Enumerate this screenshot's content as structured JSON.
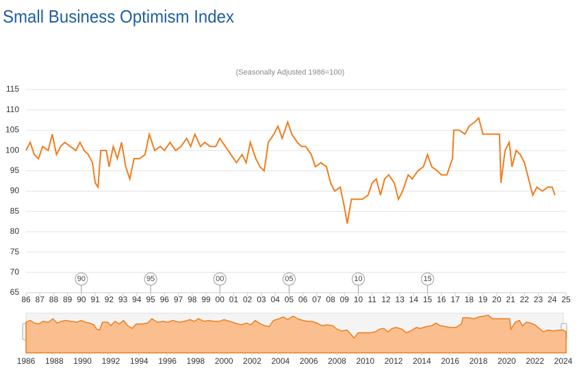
{
  "chart_data": {
    "type": "line",
    "title": "Small Business Optimism Index",
    "subtitle": "(Seasonally Adjusted 1986=100)",
    "color": "#f07c1a",
    "grid": true,
    "x": [
      1986.0,
      1986.3,
      1986.6,
      1986.9,
      1987.2,
      1987.6,
      1987.9,
      1988.2,
      1988.5,
      1988.8,
      1989.2,
      1989.6,
      1989.9,
      1990.2,
      1990.5,
      1990.8,
      1991.0,
      1991.2,
      1991.4,
      1991.8,
      1992.0,
      1992.3,
      1992.6,
      1992.9,
      1993.2,
      1993.5,
      1993.8,
      1994.2,
      1994.6,
      1994.9,
      1995.3,
      1995.7,
      1996.0,
      1996.4,
      1996.8,
      1997.2,
      1997.6,
      1997.9,
      1998.2,
      1998.6,
      1998.9,
      1999.3,
      1999.7,
      2000.0,
      2000.4,
      2000.8,
      2001.2,
      2001.6,
      2001.9,
      2002.2,
      2002.6,
      2002.9,
      2003.2,
      2003.5,
      2003.9,
      2004.2,
      2004.5,
      2004.9,
      2005.2,
      2005.6,
      2005.9,
      2006.2,
      2006.6,
      2006.9,
      2007.3,
      2007.7,
      2008.0,
      2008.3,
      2008.7,
      2009.0,
      2009.2,
      2009.5,
      2009.9,
      2010.3,
      2010.7,
      2011.0,
      2011.3,
      2011.6,
      2011.9,
      2012.2,
      2012.6,
      2012.9,
      2013.2,
      2013.6,
      2013.9,
      2014.3,
      2014.7,
      2015.0,
      2015.3,
      2015.7,
      2016.0,
      2016.4,
      2016.8,
      2016.9,
      2017.3,
      2017.7,
      2018.0,
      2018.4,
      2018.7,
      2019.0,
      2019.4,
      2019.8,
      2020.2,
      2020.3,
      2020.6,
      2020.9,
      2021.1,
      2021.4,
      2021.7,
      2022.0,
      2022.3,
      2022.6,
      2022.9,
      2023.3,
      2023.7,
      2024.0,
      2024.2
    ],
    "values": [
      100,
      102,
      99,
      98,
      101,
      100,
      104,
      99,
      101,
      102,
      101,
      100,
      102,
      100,
      99,
      97,
      92,
      91,
      100,
      100,
      96,
      101,
      98,
      102,
      96,
      93,
      98,
      98,
      99,
      104,
      100,
      101,
      100,
      102,
      100,
      101,
      103,
      101,
      104,
      101,
      102,
      101,
      101,
      103,
      101,
      99,
      97,
      99,
      97,
      102,
      98,
      96,
      95,
      102,
      104,
      106,
      103,
      107,
      104,
      102,
      101,
      101,
      99,
      96,
      97,
      96,
      92,
      90,
      91,
      86,
      82,
      88,
      88,
      88,
      89,
      92,
      93,
      89,
      93,
      94,
      92,
      88,
      90,
      94,
      93,
      95,
      96,
      99,
      96,
      95,
      94,
      94,
      98,
      105,
      105,
      104,
      106,
      107,
      108,
      104,
      104,
      104,
      104,
      92,
      100,
      102,
      96,
      100,
      99,
      97,
      93,
      89,
      91,
      90,
      91,
      91,
      89
    ],
    "xlim": [
      1986,
      2025
    ],
    "ylim": [
      65,
      115
    ],
    "yticks": [
      65,
      70,
      75,
      80,
      85,
      90,
      95,
      100,
      105,
      110,
      115
    ],
    "xticks": [
      {
        "value": 1986,
        "label": "86"
      },
      {
        "value": 1987,
        "label": "87"
      },
      {
        "value": 1988,
        "label": "88"
      },
      {
        "value": 1989,
        "label": "89"
      },
      {
        "value": 1990,
        "label": "90"
      },
      {
        "value": 1991,
        "label": "91"
      },
      {
        "value": 1992,
        "label": "92"
      },
      {
        "value": 1993,
        "label": "93"
      },
      {
        "value": 1994,
        "label": "94"
      },
      {
        "value": 1995,
        "label": "95"
      },
      {
        "value": 1996,
        "label": "96"
      },
      {
        "value": 1997,
        "label": "97"
      },
      {
        "value": 1998,
        "label": "98"
      },
      {
        "value": 1999,
        "label": "99"
      },
      {
        "value": 2000,
        "label": "00"
      },
      {
        "value": 2001,
        "label": "01"
      },
      {
        "value": 2002,
        "label": "02"
      },
      {
        "value": 2003,
        "label": "03"
      },
      {
        "value": 2004,
        "label": "04"
      },
      {
        "value": 2005,
        "label": "05"
      },
      {
        "value": 2006,
        "label": "06"
      },
      {
        "value": 2007,
        "label": "07"
      },
      {
        "value": 2008,
        "label": "08"
      },
      {
        "value": 2009,
        "label": "09"
      },
      {
        "value": 2010,
        "label": "10"
      },
      {
        "value": 2011,
        "label": "11"
      },
      {
        "value": 2012,
        "label": "12"
      },
      {
        "value": 2013,
        "label": "13"
      },
      {
        "value": 2014,
        "label": "14"
      },
      {
        "value": 2015,
        "label": "15"
      },
      {
        "value": 2016,
        "label": "16"
      },
      {
        "value": 2017,
        "label": "17"
      },
      {
        "value": 2018,
        "label": "18"
      },
      {
        "value": 2019,
        "label": "19"
      },
      {
        "value": 2020,
        "label": "20"
      },
      {
        "value": 2021,
        "label": "21"
      },
      {
        "value": 2022,
        "label": "22"
      },
      {
        "value": 2023,
        "label": "23"
      },
      {
        "value": 2024,
        "label": "24"
      },
      {
        "value": 2025,
        "label": "25"
      }
    ],
    "flags": [
      {
        "x": 1990,
        "label": "90"
      },
      {
        "x": 1995,
        "label": "95"
      },
      {
        "x": 2000,
        "label": "00"
      },
      {
        "x": 2005,
        "label": "05"
      },
      {
        "x": 2010,
        "label": "10"
      },
      {
        "x": 2015,
        "label": "15"
      }
    ],
    "navigator": {
      "xlim": [
        1986,
        2024
      ],
      "xticks": [
        1986,
        1988,
        1990,
        1992,
        1994,
        1996,
        1998,
        2000,
        2002,
        2004,
        2006,
        2008,
        2010,
        2012,
        2014,
        2016,
        2018,
        2020,
        2022,
        2024
      ],
      "fill": "#fbbf8f"
    }
  }
}
